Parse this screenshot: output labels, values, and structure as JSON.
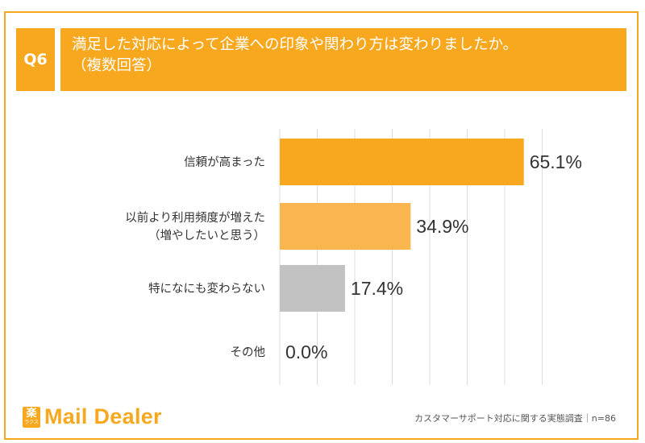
{
  "header": {
    "q_label": "Q6",
    "title_line1": "満足した対応によって企業への印象や関わり方は変わりましたか。",
    "title_line2": "（複数回答）"
  },
  "colors": {
    "accent": "#f7a81f",
    "bar_primary": "#f7a81f",
    "bar_secondary": "#f9b54e",
    "bar_neutral": "#c2c2c2",
    "grid": "#dddddd"
  },
  "chart_data": {
    "type": "bar",
    "orientation": "horizontal",
    "categories": [
      [
        "信頼が高まった"
      ],
      [
        "以前より利用頻度が増えた",
        "（増やしたいと思う）"
      ],
      [
        "特になにも変わらない"
      ],
      [
        "その他"
      ]
    ],
    "values": [
      65.1,
      34.9,
      17.4,
      0.0
    ],
    "value_labels": [
      "65.1%",
      "34.9%",
      "17.4%",
      "0.0%"
    ],
    "bar_colors": [
      "#f7a81f",
      "#f9b54e",
      "#c2c2c2",
      "#c2c2c2"
    ],
    "xlim": [
      0,
      70
    ],
    "grid_step": 10,
    "grid": true
  },
  "footer": {
    "logo_mark_kanji": "楽",
    "logo_mark_kana": "ラクス",
    "logo_text": "Mail Dealer",
    "source": "カスタマーサポート対応に関する実態調査｜n=86"
  }
}
